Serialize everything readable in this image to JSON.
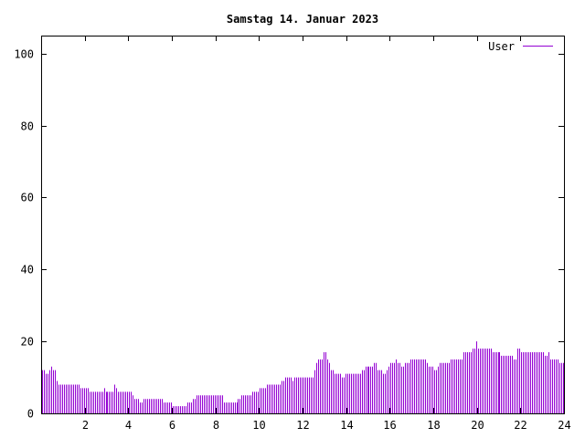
{
  "chart_data": {
    "type": "bar",
    "title": "Samstag 14. Januar 2023",
    "xlabel": "",
    "ylabel": "",
    "xlim": [
      0,
      24
    ],
    "ylim": [
      0,
      105
    ],
    "x_ticks": [
      2,
      4,
      6,
      8,
      10,
      12,
      14,
      16,
      18,
      20,
      22,
      24
    ],
    "y_ticks": [
      0,
      20,
      40,
      60,
      80,
      100
    ],
    "grid": false,
    "legend_position": "top-right",
    "series": [
      {
        "name": "User",
        "color": "#9400d3",
        "values": [
          12,
          12,
          11,
          11,
          12,
          13,
          12,
          12,
          9,
          8,
          8,
          8,
          8,
          8,
          8,
          8,
          8,
          8,
          8,
          8,
          8,
          7,
          7,
          7,
          7,
          7,
          6,
          6,
          6,
          6,
          6,
          6,
          6,
          6,
          7,
          6,
          6,
          6,
          6,
          6,
          8,
          7,
          6,
          6,
          6,
          6,
          6,
          6,
          6,
          6,
          5,
          4,
          4,
          4,
          3,
          3,
          4,
          4,
          4,
          4,
          4,
          4,
          4,
          4,
          4,
          4,
          4,
          3,
          3,
          3,
          3,
          3,
          2,
          2,
          2,
          2,
          2,
          2,
          2,
          2,
          3,
          3,
          3,
          4,
          4,
          5,
          5,
          5,
          5,
          5,
          5,
          5,
          5,
          5,
          5,
          5,
          5,
          5,
          5,
          5,
          3,
          3,
          3,
          3,
          3,
          3,
          3,
          3,
          4,
          4,
          5,
          5,
          5,
          5,
          5,
          5,
          6,
          6,
          6,
          6,
          7,
          7,
          7,
          7,
          8,
          8,
          8,
          8,
          8,
          8,
          8,
          8,
          9,
          9,
          10,
          10,
          10,
          10,
          9,
          10,
          10,
          10,
          10,
          10,
          10,
          10,
          10,
          10,
          10,
          10,
          12,
          14,
          15,
          15,
          15,
          17,
          17,
          15,
          14,
          12,
          12,
          11,
          11,
          11,
          11,
          10,
          10,
          11,
          11,
          11,
          11,
          11,
          11,
          11,
          11,
          11,
          12,
          12,
          13,
          13,
          13,
          13,
          13,
          14,
          14,
          12,
          12,
          12,
          11,
          11,
          12,
          13,
          14,
          14,
          14,
          15,
          14,
          14,
          13,
          13,
          14,
          14,
          14,
          15,
          15,
          15,
          15,
          15,
          15,
          15,
          15,
          15,
          14,
          13,
          13,
          13,
          12,
          12,
          13,
          14,
          14,
          14,
          14,
          14,
          14,
          15,
          15,
          15,
          15,
          15,
          15,
          15,
          17,
          17,
          17,
          17,
          17,
          18,
          18,
          20,
          18,
          18,
          18,
          18,
          18,
          18,
          18,
          18,
          17,
          17,
          17,
          17,
          17,
          16,
          16,
          16,
          16,
          16,
          16,
          16,
          15,
          15,
          18,
          18,
          17,
          17,
          17,
          17,
          17,
          17,
          17,
          17,
          17,
          17,
          17,
          17,
          17,
          16,
          16,
          17,
          15,
          15,
          15,
          15,
          15,
          14,
          14,
          14
        ]
      }
    ]
  }
}
